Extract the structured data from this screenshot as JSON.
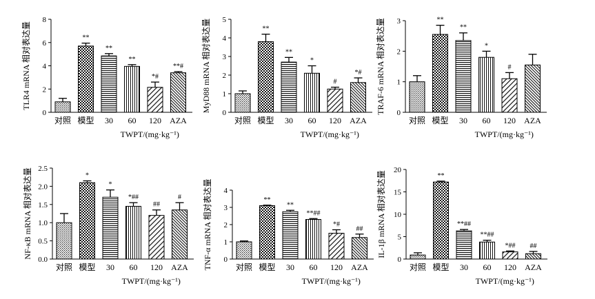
{
  "x_axis_caption": "TWPT/(mg·kg⁻¹)",
  "chart_data": [
    {
      "type": "bar",
      "ylabel": "TLR4 mRNA 相对表达量",
      "ylim": [
        0,
        8
      ],
      "yticks": [
        "0",
        "2",
        "4",
        "6",
        "8"
      ],
      "categories": [
        "对照",
        "模型",
        "30",
        "60",
        "120",
        "AZA"
      ],
      "values": [
        0.9,
        5.7,
        4.85,
        3.95,
        2.15,
        3.4
      ],
      "errors": [
        0.3,
        0.25,
        0.2,
        0.15,
        0.45,
        0.1
      ],
      "sig": [
        "",
        "**",
        "**",
        "**",
        "*#",
        "**#"
      ],
      "xlabel": "TWPT/(mg·kg⁻¹)"
    },
    {
      "type": "bar",
      "ylabel": "MyD88 mRNA 相对表达量",
      "ylim": [
        0,
        5
      ],
      "yticks": [
        "0",
        "1",
        "2",
        "3",
        "4",
        "5"
      ],
      "categories": [
        "对照",
        "模型",
        "30",
        "60",
        "120",
        "AZA"
      ],
      "values": [
        1.0,
        3.8,
        2.7,
        2.1,
        1.25,
        1.6
      ],
      "errors": [
        0.15,
        0.4,
        0.25,
        0.4,
        0.1,
        0.25
      ],
      "sig": [
        "",
        "**",
        "**",
        "*",
        "#",
        "*#"
      ],
      "xlabel": "TWPT/(mg·kg⁻¹)"
    },
    {
      "type": "bar",
      "ylabel": "TRAF-6 mRNA 相对表达量",
      "ylim": [
        0,
        3
      ],
      "yticks": [
        "0",
        "1",
        "2",
        "3"
      ],
      "categories": [
        "对照",
        "模型",
        "30",
        "60",
        "120",
        "AZA"
      ],
      "values": [
        1.0,
        2.55,
        2.35,
        1.8,
        1.1,
        1.55
      ],
      "errors": [
        0.2,
        0.3,
        0.25,
        0.2,
        0.2,
        0.35
      ],
      "sig": [
        "",
        "**",
        "**",
        "*",
        "#",
        ""
      ],
      "xlabel": "TWPT/(mg·kg⁻¹)"
    },
    {
      "type": "bar",
      "ylabel": "NF-κB mRNA 相对表达量",
      "ylim": [
        0,
        2.5
      ],
      "yticks": [
        "0.0",
        "0.5",
        "1.0",
        "1.5",
        "2.0",
        "2.5"
      ],
      "categories": [
        "对照",
        "模型",
        "30",
        "60",
        "120",
        "AZA"
      ],
      "values": [
        1.0,
        2.1,
        1.7,
        1.45,
        1.2,
        1.35
      ],
      "errors": [
        0.25,
        0.05,
        0.2,
        0.1,
        0.15,
        0.2
      ],
      "sig": [
        "",
        "*",
        "*",
        "*##",
        "##",
        "#"
      ],
      "xlabel": "TWPT/(mg·kg⁻¹)"
    },
    {
      "type": "bar",
      "ylabel": "TNF-α mRNA 相对表达量",
      "ylim": [
        0,
        4
      ],
      "yticks": [
        "0",
        "1",
        "2",
        "3",
        "4"
      ],
      "categories": [
        "对照",
        "模型",
        "30",
        "60",
        "120",
        "AZA"
      ],
      "values": [
        1.0,
        3.1,
        2.75,
        2.3,
        1.5,
        1.25
      ],
      "errors": [
        0.05,
        0.03,
        0.08,
        0.05,
        0.2,
        0.2
      ],
      "sig": [
        "",
        "**",
        "**",
        "**##",
        "*#",
        "##"
      ],
      "xlabel": "TWPT/(mg·kg⁻¹)"
    },
    {
      "type": "bar",
      "ylabel": "IL-1β mRNA 相对表达量",
      "ylim": [
        0,
        20
      ],
      "yticks": [
        "0",
        "5",
        "10",
        "15",
        "20"
      ],
      "categories": [
        "对照",
        "模型",
        "30",
        "60",
        "120",
        "AZA"
      ],
      "values": [
        0.9,
        17.2,
        6.3,
        3.8,
        1.6,
        1.2
      ],
      "errors": [
        0.5,
        0.2,
        0.3,
        0.4,
        0.2,
        0.5
      ],
      "sig": [
        "",
        "**",
        "**##",
        "**##",
        "*##",
        "##"
      ],
      "xlabel": "TWPT/(mg·kg⁻¹)"
    }
  ],
  "bar_patterns": [
    "dots",
    "checker",
    "hstripes",
    "vstripes",
    "diag",
    "diag-dense"
  ]
}
